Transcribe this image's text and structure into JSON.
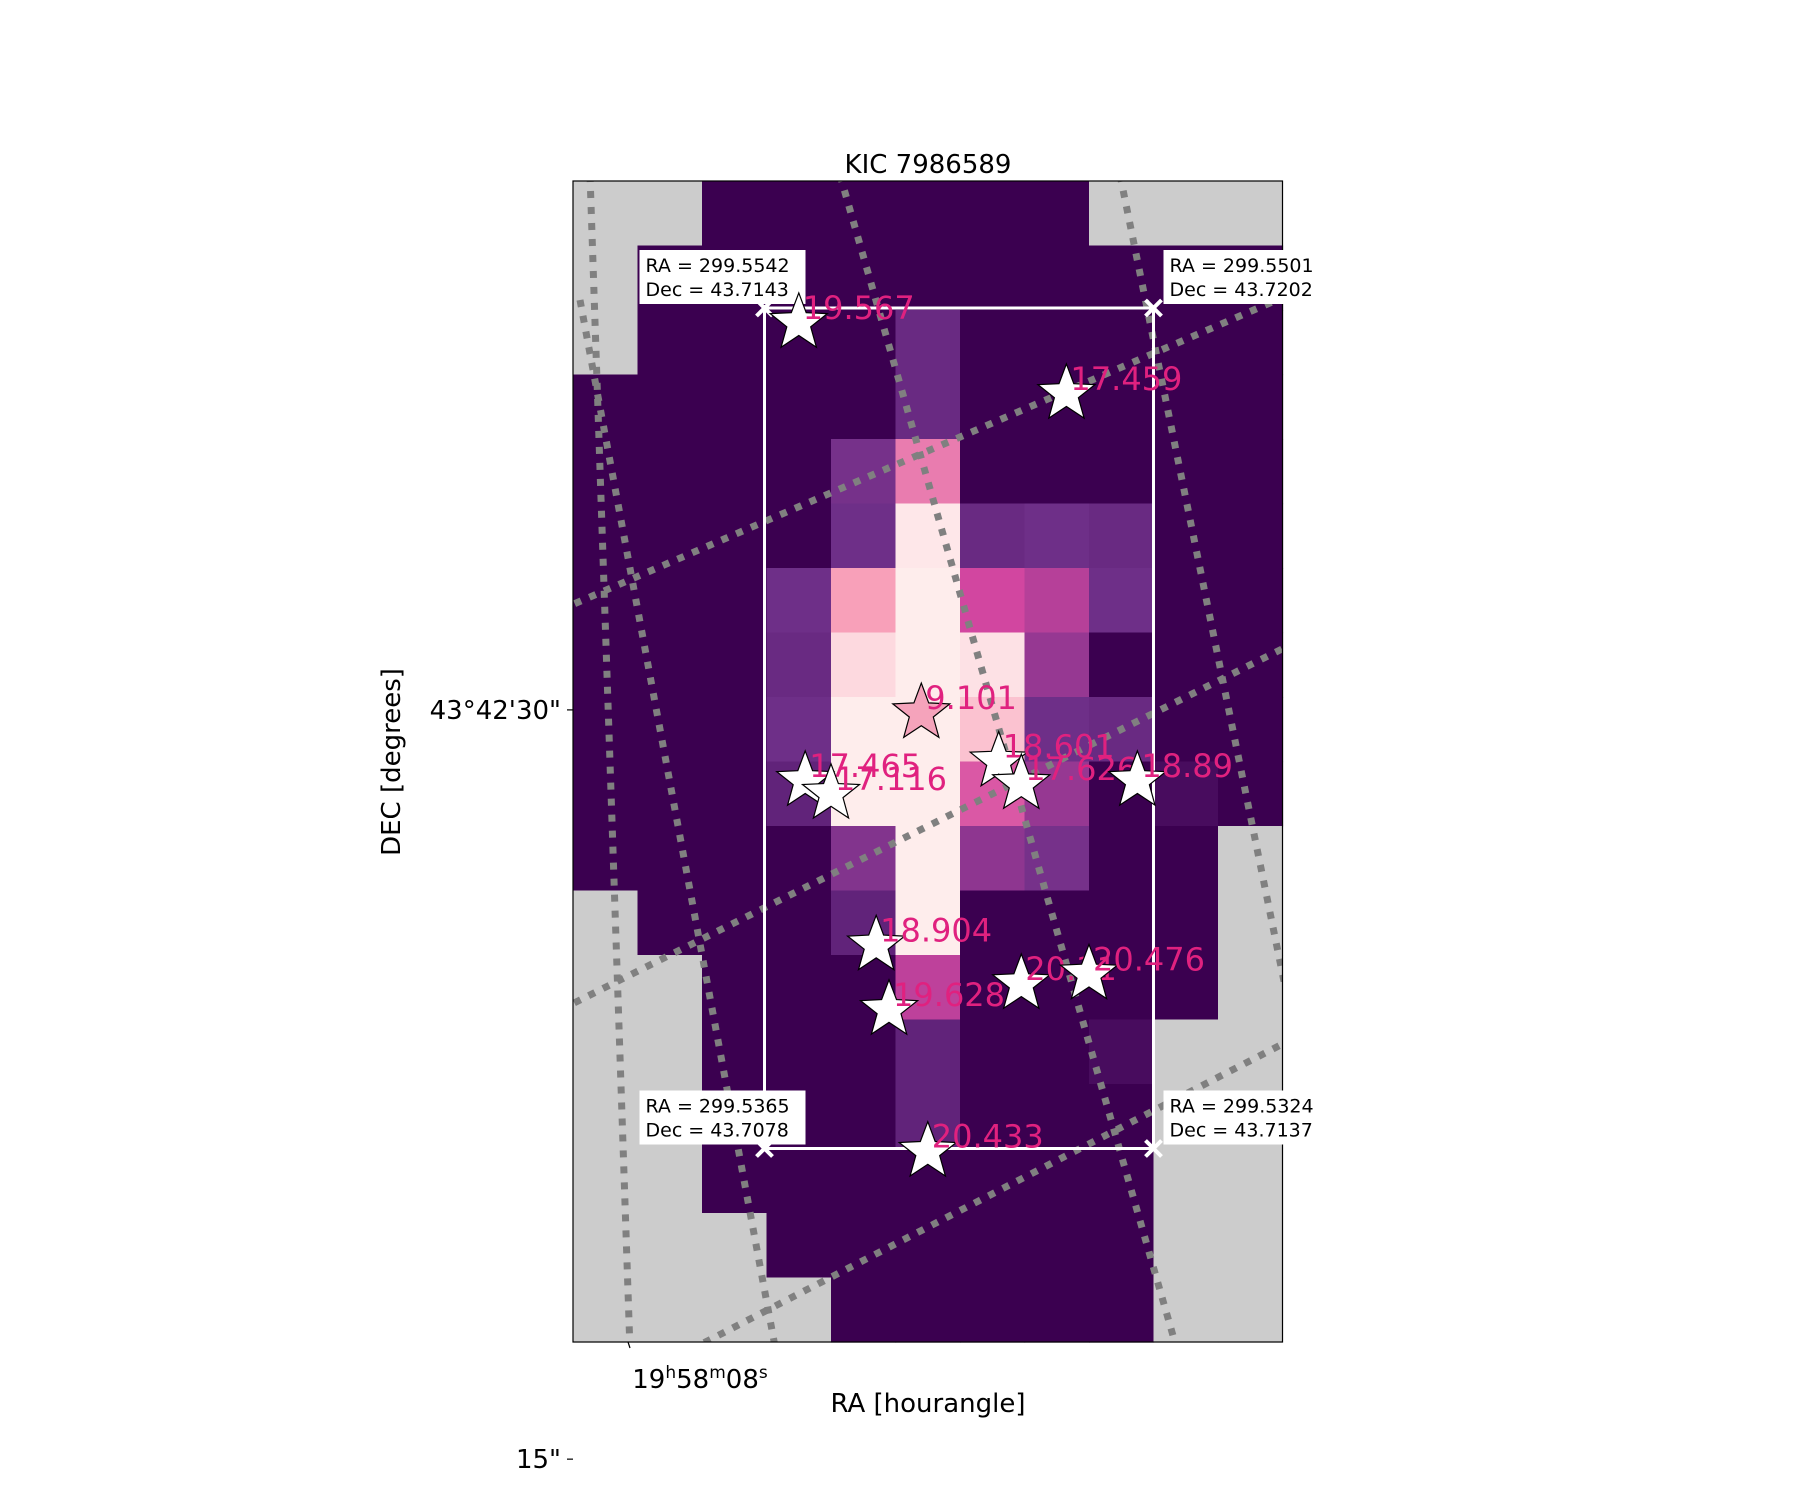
{
  "chart_data": {
    "type": "heatmap",
    "title": "KIC 7986589",
    "xlabel": "RA [hourangle]",
    "ylabel": "DEC [degrees]",
    "x_tick_labels": [
      {
        "h": "19",
        "m": "58",
        "s": "08"
      }
    ],
    "y_tick_labels": [
      "43°42'30\"",
      "15\""
    ],
    "grid": "dotted gray RA/Dec coordinate grid",
    "colormap": "RdPu_r",
    "aperture_corners": [
      {
        "ra": "299.5542",
        "dec": "43.7143"
      },
      {
        "ra": "299.5501",
        "dec": "43.7202"
      },
      {
        "ra": "299.5365",
        "dec": "43.7078"
      },
      {
        "ra": "299.5324",
        "dec": "43.7137"
      }
    ],
    "pixel_grid_note": "11 columns x 18 rows; value 0 = darkest, 1 = brightest, null = no data",
    "pixels": [
      [
        null,
        null,
        0,
        0,
        0,
        0,
        0,
        0,
        null,
        null,
        null
      ],
      [
        null,
        0,
        0,
        0,
        0,
        0,
        0,
        0,
        0,
        0,
        0
      ],
      [
        null,
        0,
        0,
        0,
        0,
        0.18,
        0,
        0,
        0,
        0,
        0
      ],
      [
        0,
        0,
        0,
        0,
        0,
        0.18,
        0,
        0,
        0,
        0,
        0
      ],
      [
        0,
        0,
        0,
        0,
        0.22,
        0.6,
        0,
        0,
        0,
        0,
        0
      ],
      [
        0,
        0,
        0,
        0,
        0.2,
        0.95,
        0.18,
        0.2,
        0.18,
        0,
        0
      ],
      [
        0,
        0,
        0,
        0.2,
        0.7,
        0.97,
        0.45,
        0.38,
        0.2,
        0,
        0
      ],
      [
        0,
        0,
        0,
        0.18,
        0.9,
        0.97,
        0.93,
        0.3,
        0,
        0,
        0
      ],
      [
        0,
        0,
        0,
        0.2,
        0.97,
        0.97,
        0.82,
        0.2,
        0.18,
        0,
        0
      ],
      [
        0,
        0,
        0,
        0.15,
        0.97,
        0.97,
        0.5,
        0.3,
        0,
        0.05,
        0
      ],
      [
        0,
        0,
        0,
        0,
        0.25,
        0.97,
        0.28,
        0.22,
        0,
        0,
        null
      ],
      [
        null,
        0,
        0,
        0,
        0.15,
        0.97,
        0,
        0,
        0,
        0,
        null
      ],
      [
        null,
        null,
        0,
        0,
        0,
        0.4,
        0,
        0,
        0,
        0,
        null
      ],
      [
        null,
        null,
        0,
        0,
        0,
        0.15,
        0,
        0,
        0.05,
        null,
        null
      ],
      [
        null,
        null,
        0,
        0,
        0,
        0.15,
        0,
        0,
        0,
        null,
        null
      ],
      [
        null,
        null,
        0,
        0,
        0,
        0,
        0,
        0,
        0,
        null,
        null
      ],
      [
        null,
        null,
        null,
        0,
        0,
        0,
        0,
        0,
        0,
        null,
        null
      ],
      [
        null,
        null,
        null,
        null,
        0,
        0,
        0,
        0,
        0,
        null,
        null
      ]
    ],
    "stars": [
      {
        "mag": "19.567",
        "col": 3.5,
        "row": 2.2,
        "target": false
      },
      {
        "mag": "17.459",
        "col": 7.65,
        "row": 3.3,
        "target": false
      },
      {
        "mag": "9.101",
        "col": 5.4,
        "row": 8.25,
        "target": true
      },
      {
        "mag": "18.601",
        "col": 6.6,
        "row": 9.0,
        "target": false
      },
      {
        "mag": "17.465",
        "col": 3.6,
        "row": 9.3,
        "target": false
      },
      {
        "mag": "17.116",
        "col": 4.0,
        "row": 9.5,
        "target": false
      },
      {
        "mag": "17.626",
        "col": 6.95,
        "row": 9.35,
        "target": false
      },
      {
        "mag": "18.89",
        "col": 8.75,
        "row": 9.3,
        "target": false
      },
      {
        "mag": "18.904",
        "col": 4.7,
        "row": 11.85,
        "target": false
      },
      {
        "mag": "20.31",
        "col": 6.95,
        "row": 12.45,
        "target": false
      },
      {
        "mag": "20.476",
        "col": 8.0,
        "row": 12.3,
        "target": false
      },
      {
        "mag": "19.628",
        "col": 4.9,
        "row": 12.85,
        "target": false
      },
      {
        "mag": "20.433",
        "col": 5.5,
        "row": 15.05,
        "target": false
      }
    ]
  }
}
